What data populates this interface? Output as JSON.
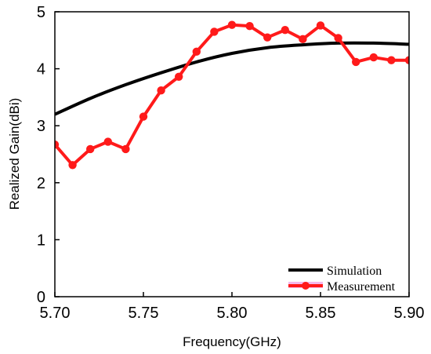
{
  "chart_data": {
    "type": "line",
    "xlabel": "Frequency(GHz)",
    "ylabel": "Realized Gain(dBi)",
    "xlim": [
      5.7,
      5.9
    ],
    "ylim": [
      0,
      5
    ],
    "x_ticks": [
      "5.70",
      "5.75",
      "5.80",
      "5.85",
      "5.90"
    ],
    "y_ticks": [
      "0",
      "1",
      "2",
      "3",
      "4",
      "5"
    ],
    "x_tick_values": [
      5.7,
      5.75,
      5.8,
      5.85,
      5.9
    ],
    "y_tick_values": [
      0,
      1,
      2,
      3,
      4,
      5
    ],
    "grid": false,
    "legend_position": "bottom-right",
    "series": [
      {
        "name": "Simulation",
        "color": "#000000",
        "marker": "none",
        "x": [
          5.7,
          5.72,
          5.74,
          5.76,
          5.78,
          5.8,
          5.82,
          5.84,
          5.86,
          5.88,
          5.9
        ],
        "y": [
          3.2,
          3.48,
          3.72,
          3.93,
          4.12,
          4.27,
          4.37,
          4.42,
          4.45,
          4.45,
          4.43
        ]
      },
      {
        "name": "Measurement",
        "color": "#ff1a1a",
        "marker": "circle",
        "x": [
          5.7,
          5.71,
          5.72,
          5.73,
          5.74,
          5.75,
          5.76,
          5.77,
          5.78,
          5.79,
          5.8,
          5.81,
          5.82,
          5.83,
          5.84,
          5.85,
          5.86,
          5.87,
          5.88,
          5.89,
          5.9
        ],
        "y": [
          2.67,
          2.31,
          2.59,
          2.72,
          2.59,
          3.16,
          3.62,
          3.86,
          4.3,
          4.65,
          4.77,
          4.75,
          4.55,
          4.68,
          4.52,
          4.76,
          4.54,
          4.12,
          4.2,
          4.15,
          4.15
        ]
      }
    ]
  }
}
